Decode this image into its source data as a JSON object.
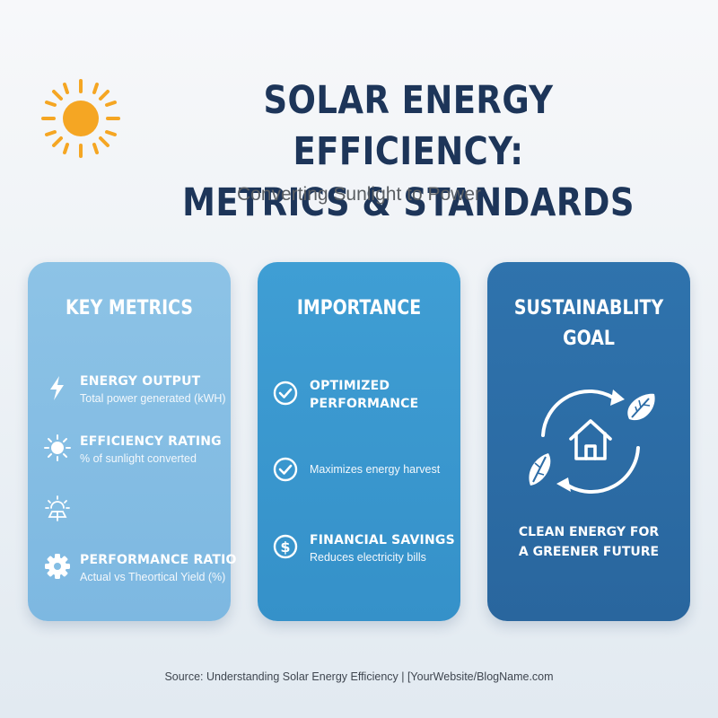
{
  "header": {
    "title_line1": "SOLAR ENERGY EFFICIENCY:",
    "title_line2": "METRICS & STANDARDS",
    "subtitle": "Converting Sunlight to Power",
    "icon": "sun-icon"
  },
  "cards": [
    {
      "title": "KEY METRICS",
      "items": [
        {
          "icon": "lightning-bolt-icon",
          "title": "ENERGY OUTPUT",
          "desc": "Total power generated (kWH)"
        },
        {
          "icon": "sun-icon",
          "title": "EFFICIENCY RATING",
          "desc": "% of sunlight converted"
        },
        {
          "icon": "solar-panel-sun-icon",
          "title": "",
          "desc": ""
        },
        {
          "icon": "gear-icon",
          "title": "PERFORMANCE RATIO",
          "desc": "Actual vs Theortical Yield (%)"
        }
      ]
    },
    {
      "title": "IMPORTANCE",
      "items": [
        {
          "icon": "check-circle-icon",
          "title_line1": "OPTIMIZED",
          "title_line2": "PERFORMANCE"
        },
        {
          "icon": "check-circle-icon",
          "desc": "Maximizes energy harvest"
        },
        {
          "icon": "dollar-circle-icon",
          "title": "FINANCIAL SAVINGS",
          "desc": "Reduces electricity bills"
        }
      ]
    },
    {
      "title_line1": "SUSTAINABLITY",
      "title_line2": "GOAL",
      "icons": [
        "house-icon",
        "leaf-icon",
        "recycle-arrows-icon"
      ],
      "text_line1": "CLEAN ENERGY FOR",
      "text_line2": "A GREENER FUTURE"
    }
  ],
  "footer": "Source: Understanding Solar Energy Efficiency | [YourWebsite/BlogName.com",
  "colors": {
    "title": "#1d3559",
    "card1": "#84bee4",
    "card2": "#3a98cf",
    "card3": "#2c6ca6",
    "sun": "#f5a623"
  }
}
